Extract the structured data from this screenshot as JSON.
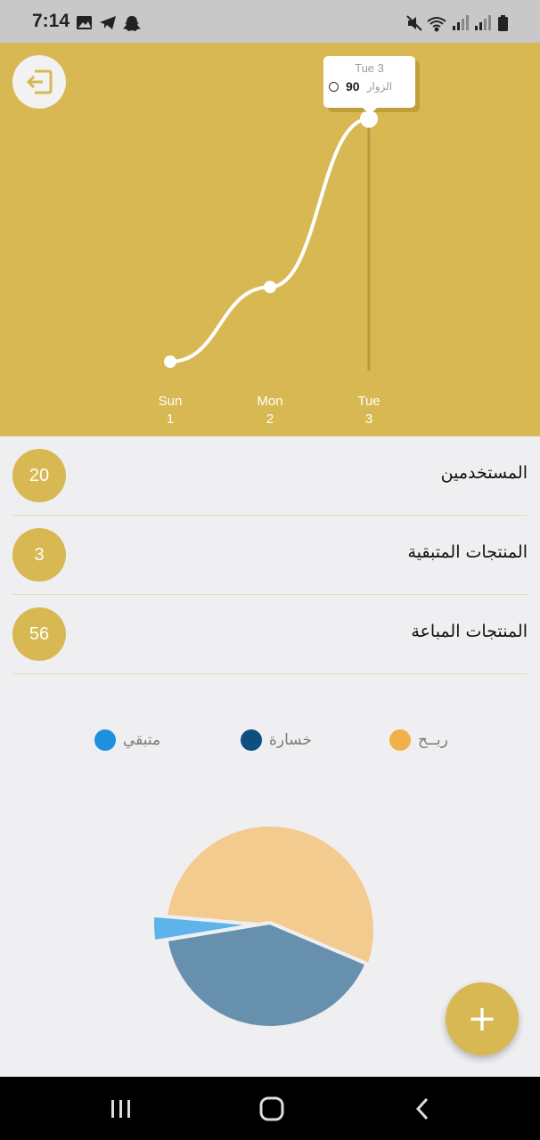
{
  "status_bar": {
    "time": "7:14",
    "left_icons": [
      "gallery-icon",
      "telegram-icon",
      "snapchat-icon"
    ],
    "right_icons": [
      "mute-icon",
      "wifi-icon",
      "signal-icon",
      "signal-icon-2",
      "battery-icon"
    ]
  },
  "header": {
    "logout_icon": "logout-icon"
  },
  "chart_data": {
    "type": "line",
    "x": [
      "Sun 1",
      "Mon 2",
      "Tue 3"
    ],
    "x_tick_days": [
      "Sun",
      "Mon",
      "Tue"
    ],
    "x_tick_dates": [
      "1",
      "2",
      "3"
    ],
    "series": [
      {
        "name": "الزوار",
        "values": [
          12,
          36,
          90
        ]
      }
    ],
    "ylim": [
      0,
      95
    ],
    "grid": false,
    "tooltip": {
      "title": "Tue 3",
      "value": "90",
      "series_name": "الزوار"
    },
    "colors": {
      "background": "#d8b852",
      "line": "#ffffff"
    }
  },
  "stats": [
    {
      "label": "المستخدمين",
      "value": "20"
    },
    {
      "label": "المنتجات المتبقية",
      "value": "3"
    },
    {
      "label": "المنتجات المباعة",
      "value": "56"
    }
  ],
  "pie_chart": {
    "type": "pie",
    "legend": [
      {
        "label": "متبقي",
        "color": "#1e90e0"
      },
      {
        "label": "خسارة",
        "color": "#0f4f80"
      },
      {
        "label": "ربــح",
        "color": "#f2b04a"
      }
    ],
    "slices": [
      {
        "label": "ربــح",
        "value": 55,
        "color": "#f3cb8f"
      },
      {
        "label": "خسارة",
        "value": 41,
        "color": "#6690ad"
      },
      {
        "label": "متبقي",
        "value": 4,
        "color": "#5db3ea"
      }
    ]
  },
  "fab": {
    "label": "+"
  },
  "nav": {
    "recents_icon": "recents-icon",
    "home_icon": "home-icon",
    "back_icon": "back-icon"
  }
}
